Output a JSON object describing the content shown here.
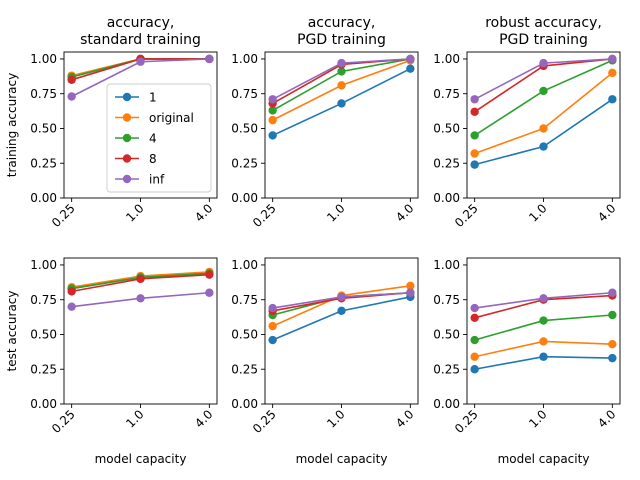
{
  "chart_data": {
    "type": "line",
    "x": [
      "0.25",
      "1.0",
      "4.0"
    ],
    "xlabel": "model capacity",
    "ylim": [
      0,
      1.05
    ],
    "yticks": [
      "0.00",
      "0.25",
      "0.50",
      "0.75",
      "1.00"
    ],
    "grid": false,
    "series_styles": [
      {
        "name": "1",
        "color": "#1f77b4"
      },
      {
        "name": "original",
        "color": "#ff7f0e"
      },
      {
        "name": "4",
        "color": "#2ca02c"
      },
      {
        "name": "8",
        "color": "#d62728"
      },
      {
        "name": "inf",
        "color": "#9467bd"
      }
    ],
    "legend": {
      "placement": "lower-right",
      "panel": 0
    },
    "rows": [
      {
        "ylabel": "training accuracy"
      },
      {
        "ylabel": "test accuracy"
      }
    ],
    "columns": [
      {
        "title": [
          "accuracy,",
          "standard training"
        ]
      },
      {
        "title": [
          "accuracy,",
          "PGD training"
        ]
      },
      {
        "title": [
          "robust accuracy,",
          "PGD training"
        ]
      }
    ],
    "panels": [
      {
        "row": 0,
        "col": 0,
        "series": [
          {
            "name": "1",
            "values": [
              0.87,
              1.0,
              1.0
            ]
          },
          {
            "name": "original",
            "values": [
              0.88,
              1.0,
              1.0
            ]
          },
          {
            "name": "4",
            "values": [
              0.87,
              1.0,
              1.0
            ]
          },
          {
            "name": "8",
            "values": [
              0.85,
              1.0,
              1.0
            ]
          },
          {
            "name": "inf",
            "values": [
              0.73,
              0.98,
              1.0
            ]
          }
        ]
      },
      {
        "row": 0,
        "col": 1,
        "series": [
          {
            "name": "1",
            "values": [
              0.45,
              0.68,
              0.93
            ]
          },
          {
            "name": "original",
            "values": [
              0.56,
              0.81,
              0.99
            ]
          },
          {
            "name": "4",
            "values": [
              0.63,
              0.91,
              1.0
            ]
          },
          {
            "name": "8",
            "values": [
              0.68,
              0.96,
              1.0
            ]
          },
          {
            "name": "inf",
            "values": [
              0.71,
              0.97,
              1.0
            ]
          }
        ]
      },
      {
        "row": 0,
        "col": 2,
        "series": [
          {
            "name": "1",
            "values": [
              0.24,
              0.37,
              0.71
            ]
          },
          {
            "name": "original",
            "values": [
              0.32,
              0.5,
              0.9
            ]
          },
          {
            "name": "4",
            "values": [
              0.45,
              0.77,
              0.99
            ]
          },
          {
            "name": "8",
            "values": [
              0.62,
              0.95,
              1.0
            ]
          },
          {
            "name": "inf",
            "values": [
              0.71,
              0.97,
              1.0
            ]
          }
        ]
      },
      {
        "row": 1,
        "col": 0,
        "series": [
          {
            "name": "1",
            "values": [
              0.83,
              0.91,
              0.94
            ]
          },
          {
            "name": "original",
            "values": [
              0.84,
              0.92,
              0.95
            ]
          },
          {
            "name": "4",
            "values": [
              0.83,
              0.91,
              0.94
            ]
          },
          {
            "name": "8",
            "values": [
              0.81,
              0.9,
              0.93
            ]
          },
          {
            "name": "inf",
            "values": [
              0.7,
              0.76,
              0.8
            ]
          }
        ]
      },
      {
        "row": 1,
        "col": 1,
        "series": [
          {
            "name": "1",
            "values": [
              0.46,
              0.67,
              0.77
            ]
          },
          {
            "name": "original",
            "values": [
              0.56,
              0.78,
              0.85
            ]
          },
          {
            "name": "4",
            "values": [
              0.64,
              0.77,
              0.8
            ]
          },
          {
            "name": "8",
            "values": [
              0.67,
              0.76,
              0.8
            ]
          },
          {
            "name": "inf",
            "values": [
              0.69,
              0.77,
              0.8
            ]
          }
        ]
      },
      {
        "row": 1,
        "col": 2,
        "series": [
          {
            "name": "1",
            "values": [
              0.25,
              0.34,
              0.33
            ]
          },
          {
            "name": "original",
            "values": [
              0.34,
              0.45,
              0.43
            ]
          },
          {
            "name": "4",
            "values": [
              0.46,
              0.6,
              0.64
            ]
          },
          {
            "name": "8",
            "values": [
              0.62,
              0.75,
              0.78
            ]
          },
          {
            "name": "inf",
            "values": [
              0.69,
              0.76,
              0.8
            ]
          }
        ]
      }
    ]
  }
}
